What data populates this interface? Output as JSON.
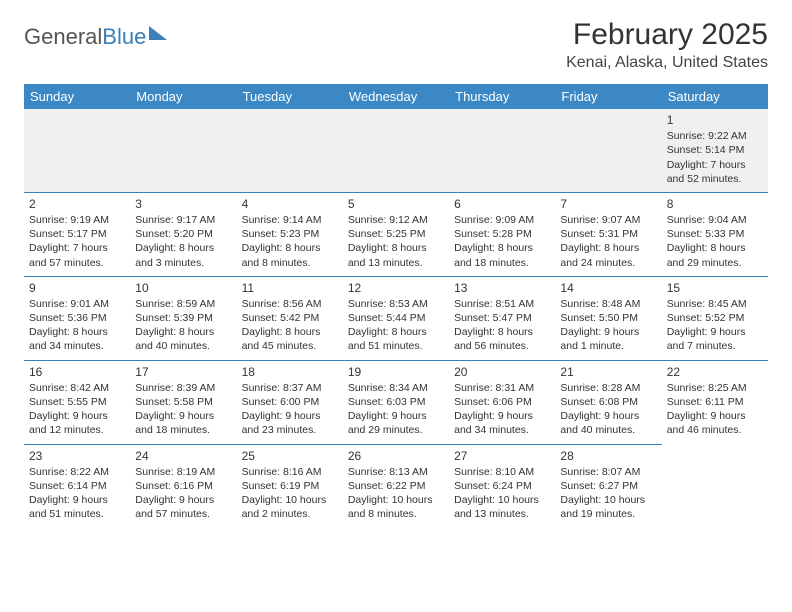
{
  "logo": {
    "text1": "General",
    "text2": "Blue"
  },
  "title": "February 2025",
  "location": "Kenai, Alaska, United States",
  "colors": {
    "header_bg": "#3b88c5",
    "accent": "#3b7fb8",
    "text": "#333333",
    "bg": "#ffffff",
    "row_alt": "#f0f0f0"
  },
  "day_headers": [
    "Sunday",
    "Monday",
    "Tuesday",
    "Wednesday",
    "Thursday",
    "Friday",
    "Saturday"
  ],
  "weeks": [
    [
      null,
      null,
      null,
      null,
      null,
      null,
      {
        "n": "1",
        "sr": "Sunrise: 9:22 AM",
        "ss": "Sunset: 5:14 PM",
        "dl": "Daylight: 7 hours and 52 minutes."
      }
    ],
    [
      {
        "n": "2",
        "sr": "Sunrise: 9:19 AM",
        "ss": "Sunset: 5:17 PM",
        "dl": "Daylight: 7 hours and 57 minutes."
      },
      {
        "n": "3",
        "sr": "Sunrise: 9:17 AM",
        "ss": "Sunset: 5:20 PM",
        "dl": "Daylight: 8 hours and 3 minutes."
      },
      {
        "n": "4",
        "sr": "Sunrise: 9:14 AM",
        "ss": "Sunset: 5:23 PM",
        "dl": "Daylight: 8 hours and 8 minutes."
      },
      {
        "n": "5",
        "sr": "Sunrise: 9:12 AM",
        "ss": "Sunset: 5:25 PM",
        "dl": "Daylight: 8 hours and 13 minutes."
      },
      {
        "n": "6",
        "sr": "Sunrise: 9:09 AM",
        "ss": "Sunset: 5:28 PM",
        "dl": "Daylight: 8 hours and 18 minutes."
      },
      {
        "n": "7",
        "sr": "Sunrise: 9:07 AM",
        "ss": "Sunset: 5:31 PM",
        "dl": "Daylight: 8 hours and 24 minutes."
      },
      {
        "n": "8",
        "sr": "Sunrise: 9:04 AM",
        "ss": "Sunset: 5:33 PM",
        "dl": "Daylight: 8 hours and 29 minutes."
      }
    ],
    [
      {
        "n": "9",
        "sr": "Sunrise: 9:01 AM",
        "ss": "Sunset: 5:36 PM",
        "dl": "Daylight: 8 hours and 34 minutes."
      },
      {
        "n": "10",
        "sr": "Sunrise: 8:59 AM",
        "ss": "Sunset: 5:39 PM",
        "dl": "Daylight: 8 hours and 40 minutes."
      },
      {
        "n": "11",
        "sr": "Sunrise: 8:56 AM",
        "ss": "Sunset: 5:42 PM",
        "dl": "Daylight: 8 hours and 45 minutes."
      },
      {
        "n": "12",
        "sr": "Sunrise: 8:53 AM",
        "ss": "Sunset: 5:44 PM",
        "dl": "Daylight: 8 hours and 51 minutes."
      },
      {
        "n": "13",
        "sr": "Sunrise: 8:51 AM",
        "ss": "Sunset: 5:47 PM",
        "dl": "Daylight: 8 hours and 56 minutes."
      },
      {
        "n": "14",
        "sr": "Sunrise: 8:48 AM",
        "ss": "Sunset: 5:50 PM",
        "dl": "Daylight: 9 hours and 1 minute."
      },
      {
        "n": "15",
        "sr": "Sunrise: 8:45 AM",
        "ss": "Sunset: 5:52 PM",
        "dl": "Daylight: 9 hours and 7 minutes."
      }
    ],
    [
      {
        "n": "16",
        "sr": "Sunrise: 8:42 AM",
        "ss": "Sunset: 5:55 PM",
        "dl": "Daylight: 9 hours and 12 minutes."
      },
      {
        "n": "17",
        "sr": "Sunrise: 8:39 AM",
        "ss": "Sunset: 5:58 PM",
        "dl": "Daylight: 9 hours and 18 minutes."
      },
      {
        "n": "18",
        "sr": "Sunrise: 8:37 AM",
        "ss": "Sunset: 6:00 PM",
        "dl": "Daylight: 9 hours and 23 minutes."
      },
      {
        "n": "19",
        "sr": "Sunrise: 8:34 AM",
        "ss": "Sunset: 6:03 PM",
        "dl": "Daylight: 9 hours and 29 minutes."
      },
      {
        "n": "20",
        "sr": "Sunrise: 8:31 AM",
        "ss": "Sunset: 6:06 PM",
        "dl": "Daylight: 9 hours and 34 minutes."
      },
      {
        "n": "21",
        "sr": "Sunrise: 8:28 AM",
        "ss": "Sunset: 6:08 PM",
        "dl": "Daylight: 9 hours and 40 minutes."
      },
      {
        "n": "22",
        "sr": "Sunrise: 8:25 AM",
        "ss": "Sunset: 6:11 PM",
        "dl": "Daylight: 9 hours and 46 minutes."
      }
    ],
    [
      {
        "n": "23",
        "sr": "Sunrise: 8:22 AM",
        "ss": "Sunset: 6:14 PM",
        "dl": "Daylight: 9 hours and 51 minutes."
      },
      {
        "n": "24",
        "sr": "Sunrise: 8:19 AM",
        "ss": "Sunset: 6:16 PM",
        "dl": "Daylight: 9 hours and 57 minutes."
      },
      {
        "n": "25",
        "sr": "Sunrise: 8:16 AM",
        "ss": "Sunset: 6:19 PM",
        "dl": "Daylight: 10 hours and 2 minutes."
      },
      {
        "n": "26",
        "sr": "Sunrise: 8:13 AM",
        "ss": "Sunset: 6:22 PM",
        "dl": "Daylight: 10 hours and 8 minutes."
      },
      {
        "n": "27",
        "sr": "Sunrise: 8:10 AM",
        "ss": "Sunset: 6:24 PM",
        "dl": "Daylight: 10 hours and 13 minutes."
      },
      {
        "n": "28",
        "sr": "Sunrise: 8:07 AM",
        "ss": "Sunset: 6:27 PM",
        "dl": "Daylight: 10 hours and 19 minutes."
      },
      null
    ]
  ]
}
